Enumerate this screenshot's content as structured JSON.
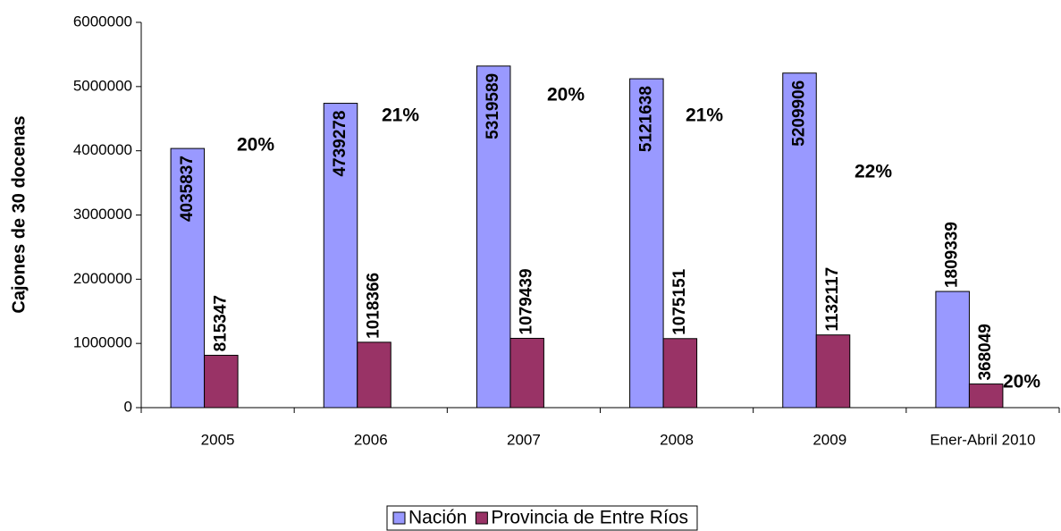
{
  "chart_data": {
    "type": "bar",
    "ylabel": "Cajones de 30 docenas",
    "categories": [
      "2005",
      "2006",
      "2007",
      "2008",
      "2009",
      "Ener-Abril 2010"
    ],
    "series": [
      {
        "name": "Nación",
        "color": "#9999ff",
        "values": [
          4035837,
          4739278,
          5319589,
          5121638,
          5209906,
          1809339
        ]
      },
      {
        "name": "Provincia de Entre Ríos",
        "color": "#993366",
        "values": [
          815347,
          1018366,
          1079439,
          1075151,
          1132117,
          368049
        ]
      }
    ],
    "annotations": [
      "20%",
      "21%",
      "20%",
      "21%",
      "22%",
      "20%"
    ],
    "ylim": [
      0,
      6000000
    ],
    "yticks": [
      0,
      1000000,
      2000000,
      3000000,
      4000000,
      5000000,
      6000000
    ],
    "legend": "bottom"
  }
}
